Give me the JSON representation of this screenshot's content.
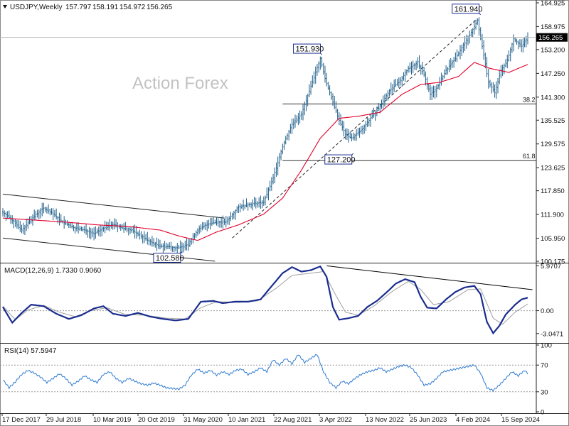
{
  "header": {
    "symbol": "USDJPY,Weekly",
    "open": "157.797",
    "high": "158.191",
    "low": "154.972",
    "close": "156.265"
  },
  "watermark": "Action Forex",
  "colors": {
    "candle": "#1f5f8a",
    "ma": "#e0002a",
    "macd": "#1a2d8f",
    "signal": "#a0a0a0",
    "rsi": "#2e7bd1",
    "trend": "#000000"
  },
  "chart_data": [
    {
      "type": "candlestick",
      "title": "USDJPY,Weekly",
      "ylim": [
        100.175,
        164.925
      ],
      "yticks": [
        "164.925",
        "158.975",
        "153.200",
        "147.250",
        "141.300",
        "135.525",
        "129.575",
        "123.625",
        "117.850",
        "111.900",
        "105.950",
        "100.175"
      ],
      "last_price": "156.265",
      "x_labels": [
        "17 Dec 2017",
        "29 Jul 2018",
        "10 Mar 2019",
        "20 Oct 2019",
        "31 May 2020",
        "10 Jan 2021",
        "22 Aug 2021",
        "3 Apr 2022",
        "13 Nov 2022",
        "25 Jun 2023",
        "4 Feb 2024",
        "15 Sep 2024"
      ],
      "price_anchors": [
        [
          0,
          112.5
        ],
        [
          6,
          110.5
        ],
        [
          12,
          108.0
        ],
        [
          20,
          111.5
        ],
        [
          26,
          113.5
        ],
        [
          32,
          112.0
        ],
        [
          38,
          110.0
        ],
        [
          46,
          108.5
        ],
        [
          52,
          108.0
        ],
        [
          58,
          107.0
        ],
        [
          64,
          108.5
        ],
        [
          70,
          109.5
        ],
        [
          76,
          108.5
        ],
        [
          82,
          108.0
        ],
        [
          88,
          106.5
        ],
        [
          94,
          105.0
        ],
        [
          100,
          104.0
        ],
        [
          106,
          103.8
        ],
        [
          112,
          103.5
        ],
        [
          118,
          104.5
        ],
        [
          124,
          108.0
        ],
        [
          130,
          109.5
        ],
        [
          136,
          110.0
        ],
        [
          142,
          110.0
        ],
        [
          150,
          113.8
        ],
        [
          158,
          114.5
        ],
        [
          166,
          115.0
        ],
        [
          172,
          121.0
        ],
        [
          178,
          129.0
        ],
        [
          184,
          134.5
        ],
        [
          190,
          137.0
        ],
        [
          196,
          144.0
        ],
        [
          202,
          151.0
        ],
        [
          205,
          146.0
        ],
        [
          210,
          140.0
        ],
        [
          214,
          135.5
        ],
        [
          218,
          132.0
        ],
        [
          222,
          131.0
        ],
        [
          228,
          133.0
        ],
        [
          234,
          136.0
        ],
        [
          240,
          139.0
        ],
        [
          246,
          143.0
        ],
        [
          252,
          145.0
        ],
        [
          258,
          148.5
        ],
        [
          264,
          150.0
        ],
        [
          268,
          147.0
        ],
        [
          272,
          142.0
        ],
        [
          276,
          143.5
        ],
        [
          282,
          148.0
        ],
        [
          288,
          151.0
        ],
        [
          294,
          155.0
        ],
        [
          298,
          157.5
        ],
        [
          302,
          160.5
        ],
        [
          305,
          154.0
        ],
        [
          309,
          145.0
        ],
        [
          313,
          142.5
        ],
        [
          317,
          148.0
        ],
        [
          321,
          150.5
        ],
        [
          325,
          156.0
        ],
        [
          330,
          154.0
        ],
        [
          334,
          156.265
        ]
      ],
      "ma_anchors": [
        [
          0,
          111.0
        ],
        [
          20,
          110.5
        ],
        [
          40,
          110.0
        ],
        [
          60,
          109.3
        ],
        [
          80,
          108.9
        ],
        [
          100,
          108.0
        ],
        [
          112,
          106.5
        ],
        [
          124,
          105.4
        ],
        [
          136,
          107.5
        ],
        [
          150,
          109.3
        ],
        [
          166,
          112.0
        ],
        [
          178,
          116.0
        ],
        [
          190,
          123.0
        ],
        [
          202,
          131.0
        ],
        [
          214,
          136.0
        ],
        [
          226,
          136.5
        ],
        [
          240,
          137.5
        ],
        [
          254,
          142.0
        ],
        [
          266,
          144.5
        ],
        [
          278,
          145.0
        ],
        [
          290,
          146.5
        ],
        [
          300,
          150.0
        ],
        [
          310,
          148.5
        ],
        [
          322,
          147.5
        ],
        [
          334,
          149.5
        ]
      ],
      "callouts": [
        {
          "label": "102.580",
          "week": 114,
          "price": 102.58
        },
        {
          "label": "151.930",
          "week": 203,
          "price": 151.93
        },
        {
          "label": "127.200",
          "week": 223,
          "price": 127.2
        },
        {
          "label": "161.940",
          "week": 304,
          "price": 161.94
        }
      ],
      "horizontal_levels": [
        {
          "label": "38.2",
          "price": 139.6
        },
        {
          "label": "61.8",
          "price": 125.4
        }
      ]
    },
    {
      "type": "line",
      "title": "MACD(12,26,9) 1.7330 0.9060",
      "ylim": [
        -4.2,
        6.2
      ],
      "yticks": [
        "5.9707",
        "0.00",
        "-3.0471"
      ],
      "macd_anchors": [
        [
          0,
          0.5
        ],
        [
          6,
          -1.6
        ],
        [
          12,
          -0.3
        ],
        [
          18,
          0.8
        ],
        [
          26,
          0.6
        ],
        [
          34,
          -0.4
        ],
        [
          42,
          -1.1
        ],
        [
          50,
          -0.6
        ],
        [
          58,
          0.3
        ],
        [
          64,
          0.6
        ],
        [
          70,
          -0.4
        ],
        [
          78,
          -0.7
        ],
        [
          86,
          -0.3
        ],
        [
          94,
          -0.8
        ],
        [
          102,
          -1.1
        ],
        [
          110,
          -1.3
        ],
        [
          118,
          -1.1
        ],
        [
          126,
          1.2
        ],
        [
          134,
          1.3
        ],
        [
          140,
          1.0
        ],
        [
          148,
          1.2
        ],
        [
          156,
          1.2
        ],
        [
          164,
          1.5
        ],
        [
          172,
          3.5
        ],
        [
          178,
          5.0
        ],
        [
          184,
          5.8
        ],
        [
          190,
          5.2
        ],
        [
          196,
          5.4
        ],
        [
          202,
          5.9
        ],
        [
          206,
          4.5
        ],
        [
          210,
          0.5
        ],
        [
          214,
          -1.2
        ],
        [
          220,
          -1.0
        ],
        [
          226,
          -0.7
        ],
        [
          232,
          0.5
        ],
        [
          238,
          1.3
        ],
        [
          244,
          2.4
        ],
        [
          250,
          3.6
        ],
        [
          256,
          4.2
        ],
        [
          262,
          3.8
        ],
        [
          266,
          1.8
        ],
        [
          270,
          0.4
        ],
        [
          276,
          0.3
        ],
        [
          282,
          1.5
        ],
        [
          288,
          2.5
        ],
        [
          294,
          3.1
        ],
        [
          300,
          3.3
        ],
        [
          304,
          2.2
        ],
        [
          308,
          -1.5
        ],
        [
          312,
          -3.0
        ],
        [
          316,
          -2.0
        ],
        [
          320,
          -0.5
        ],
        [
          326,
          0.8
        ],
        [
          330,
          1.5
        ],
        [
          334,
          1.73
        ]
      ],
      "signal_anchors": [
        [
          0,
          0.6
        ],
        [
          8,
          -1.2
        ],
        [
          16,
          0.1
        ],
        [
          26,
          0.7
        ],
        [
          36,
          -0.2
        ],
        [
          46,
          -0.8
        ],
        [
          56,
          0.0
        ],
        [
          66,
          0.4
        ],
        [
          78,
          -0.5
        ],
        [
          90,
          -0.6
        ],
        [
          104,
          -1.0
        ],
        [
          116,
          -1.1
        ],
        [
          126,
          0.4
        ],
        [
          136,
          1.2
        ],
        [
          150,
          1.1
        ],
        [
          162,
          1.3
        ],
        [
          174,
          3.0
        ],
        [
          184,
          4.7
        ],
        [
          196,
          5.0
        ],
        [
          204,
          5.2
        ],
        [
          212,
          2.0
        ],
        [
          218,
          -0.2
        ],
        [
          226,
          -0.6
        ],
        [
          236,
          0.6
        ],
        [
          248,
          2.6
        ],
        [
          258,
          3.9
        ],
        [
          266,
          2.8
        ],
        [
          274,
          0.8
        ],
        [
          284,
          1.2
        ],
        [
          296,
          2.8
        ],
        [
          304,
          2.9
        ],
        [
          312,
          -1.0
        ],
        [
          318,
          -1.8
        ],
        [
          326,
          -0.2
        ],
        [
          334,
          0.906
        ]
      ],
      "trendline": [
        [
          206,
          5.9707
        ],
        [
          337,
          2.8
        ]
      ]
    },
    {
      "type": "line",
      "title": "RSI(14) 57.5947",
      "ylim": [
        0,
        100
      ],
      "yticks": [
        "100",
        "70",
        "30",
        "0"
      ],
      "levels": [
        70,
        30
      ],
      "rsi_anchors": [
        [
          0,
          48
        ],
        [
          4,
          36
        ],
        [
          8,
          45
        ],
        [
          12,
          56
        ],
        [
          16,
          62
        ],
        [
          20,
          58
        ],
        [
          24,
          52
        ],
        [
          28,
          44
        ],
        [
          32,
          50
        ],
        [
          36,
          57
        ],
        [
          40,
          50
        ],
        [
          44,
          40
        ],
        [
          48,
          46
        ],
        [
          52,
          54
        ],
        [
          56,
          48
        ],
        [
          60,
          44
        ],
        [
          64,
          56
        ],
        [
          68,
          60
        ],
        [
          72,
          50
        ],
        [
          76,
          44
        ],
        [
          80,
          50
        ],
        [
          84,
          46
        ],
        [
          88,
          42
        ],
        [
          92,
          40
        ],
        [
          96,
          43
        ],
        [
          100,
          40
        ],
        [
          104,
          36
        ],
        [
          108,
          35
        ],
        [
          112,
          34
        ],
        [
          116,
          40
        ],
        [
          120,
          55
        ],
        [
          124,
          64
        ],
        [
          128,
          58
        ],
        [
          132,
          62
        ],
        [
          136,
          55
        ],
        [
          140,
          60
        ],
        [
          144,
          56
        ],
        [
          148,
          62
        ],
        [
          152,
          64
        ],
        [
          156,
          56
        ],
        [
          160,
          60
        ],
        [
          164,
          66
        ],
        [
          168,
          60
        ],
        [
          172,
          78
        ],
        [
          176,
          70
        ],
        [
          180,
          80
        ],
        [
          184,
          72
        ],
        [
          188,
          86
        ],
        [
          192,
          74
        ],
        [
          196,
          80
        ],
        [
          200,
          86
        ],
        [
          204,
          60
        ],
        [
          208,
          44
        ],
        [
          212,
          36
        ],
        [
          216,
          46
        ],
        [
          220,
          42
        ],
        [
          224,
          50
        ],
        [
          228,
          56
        ],
        [
          232,
          60
        ],
        [
          236,
          62
        ],
        [
          240,
          66
        ],
        [
          244,
          60
        ],
        [
          248,
          64
        ],
        [
          252,
          68
        ],
        [
          256,
          70
        ],
        [
          260,
          66
        ],
        [
          264,
          55
        ],
        [
          268,
          40
        ],
        [
          272,
          42
        ],
        [
          276,
          50
        ],
        [
          280,
          60
        ],
        [
          284,
          62
        ],
        [
          288,
          64
        ],
        [
          292,
          66
        ],
        [
          296,
          68
        ],
        [
          300,
          70
        ],
        [
          304,
          58
        ],
        [
          308,
          36
        ],
        [
          312,
          32
        ],
        [
          316,
          40
        ],
        [
          320,
          50
        ],
        [
          324,
          60
        ],
        [
          328,
          54
        ],
        [
          332,
          62
        ],
        [
          334,
          57.5947
        ]
      ]
    }
  ]
}
